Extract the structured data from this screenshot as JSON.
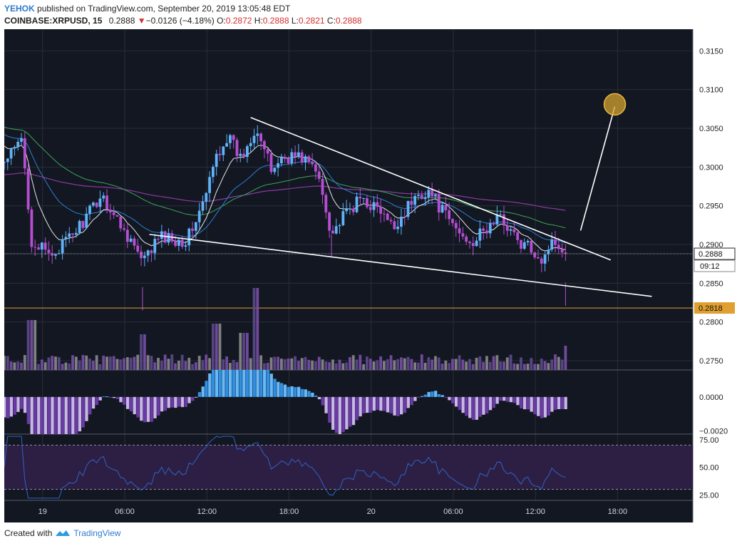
{
  "header": {
    "author": "YEHOK",
    "published_text": "published on TradingView.com, September 20, 2019 13:05:48 EDT",
    "symbol": "COINBASE:XRPUSD, 15",
    "last_price": "0.2888",
    "change_arrow": "▼",
    "change": "−0.0126 (−4.18%)",
    "o_label": "O:",
    "o_value": "0.2872",
    "h_label": "H:",
    "h_value": "0.2888",
    "l_label": "L:",
    "l_value": "0.2821",
    "c_label": "C:",
    "c_value": "0.2888"
  },
  "footer": {
    "created_with": "Created with",
    "brand": "TradingView"
  },
  "colors": {
    "background": "#131722",
    "grid": "#2a2e39",
    "candle_up": "#5fb3f9",
    "candle_down": "#b54fd1",
    "price_line": "#ffffff",
    "support_line": "#e0a030",
    "ema_fast": "#e8e8e8",
    "ema_mid": "#2b7fd4",
    "ema_slow": "#3ea35a",
    "ema_long": "#8b3aa0",
    "rsi_line": "#2f62c7",
    "rsi_band": "#2d1f44",
    "target_circle": "#d4a330"
  },
  "chart_data": {
    "type": "candlestick",
    "y_axis_price": {
      "ylim": [
        0.2738,
        0.3178
      ],
      "ticks": [
        "0.3150",
        "0.3100",
        "0.3050",
        "0.3000",
        "0.2950",
        "0.2900",
        "0.2850",
        "0.2800",
        "0.2750"
      ]
    },
    "price_labels": {
      "last_price": "0.2888",
      "countdown": "09:12",
      "support": "0.2818"
    },
    "support_level": 0.2818,
    "last_close": 0.2888,
    "x_axis": {
      "ticks": [
        "19",
        "06:00",
        "12:00",
        "18:00",
        "20",
        "06:00",
        "12:00",
        "18:00"
      ],
      "tick_hours": [
        0,
        6,
        12,
        18,
        24,
        30,
        36,
        42
      ]
    },
    "x_span_hours": [
      -2.8,
      47.5
    ],
    "candles_key_points": [
      {
        "t": -2.8,
        "p": 0.3005
      },
      {
        "t": -1.5,
        "p": 0.3035
      },
      {
        "t": -0.8,
        "p": 0.2905
      },
      {
        "t": 0.5,
        "p": 0.2885
      },
      {
        "t": 1.8,
        "p": 0.2905
      },
      {
        "t": 3.2,
        "p": 0.2935
      },
      {
        "t": 4.3,
        "p": 0.2965
      },
      {
        "t": 5.3,
        "p": 0.2935
      },
      {
        "t": 6.5,
        "p": 0.2905
      },
      {
        "t": 7.3,
        "p": 0.2875
      },
      {
        "t": 8.5,
        "p": 0.291
      },
      {
        "t": 10.5,
        "p": 0.2905
      },
      {
        "t": 11.8,
        "p": 0.2955
      },
      {
        "t": 12.7,
        "p": 0.3015
      },
      {
        "t": 13.5,
        "p": 0.304
      },
      {
        "t": 14.5,
        "p": 0.301
      },
      {
        "t": 15.6,
        "p": 0.3055
      },
      {
        "t": 16.7,
        "p": 0.2995
      },
      {
        "t": 17.3,
        "p": 0.301
      },
      {
        "t": 18.3,
        "p": 0.3015
      },
      {
        "t": 19.3,
        "p": 0.301
      },
      {
        "t": 20.2,
        "p": 0.2985
      },
      {
        "t": 21.1,
        "p": 0.2915
      },
      {
        "t": 22.2,
        "p": 0.294
      },
      {
        "t": 23.3,
        "p": 0.296
      },
      {
        "t": 24.5,
        "p": 0.2945
      },
      {
        "t": 25.6,
        "p": 0.292
      },
      {
        "t": 26.5,
        "p": 0.2945
      },
      {
        "t": 27.5,
        "p": 0.2965
      },
      {
        "t": 28.2,
        "p": 0.297
      },
      {
        "t": 29.5,
        "p": 0.2935
      },
      {
        "t": 30.7,
        "p": 0.291
      },
      {
        "t": 31.5,
        "p": 0.2905
      },
      {
        "t": 32.5,
        "p": 0.292
      },
      {
        "t": 33.2,
        "p": 0.2935
      },
      {
        "t": 34.0,
        "p": 0.2925
      },
      {
        "t": 34.8,
        "p": 0.29
      },
      {
        "t": 35.8,
        "p": 0.2895
      },
      {
        "t": 36.5,
        "p": 0.288
      },
      {
        "t": 37.0,
        "p": 0.29
      },
      {
        "t": 37.6,
        "p": 0.2905
      },
      {
        "t": 38.2,
        "p": 0.2888
      }
    ],
    "annotations": {
      "upper_trendline": [
        {
          "t": 15.2,
          "p": 0.3064
        },
        {
          "t": 41.5,
          "p": 0.288
        }
      ],
      "lower_trendline": [
        {
          "t": 7.8,
          "p": 0.2913
        },
        {
          "t": 44.5,
          "p": 0.2833
        }
      ],
      "projection_line": [
        {
          "t": 39.3,
          "p": 0.2918
        },
        {
          "t": 41.8,
          "p": 0.3078
        }
      ],
      "target": {
        "t": 41.8,
        "p": 0.3081
      }
    },
    "volume_panel": {
      "colors": [
        "#8b8b8b",
        "#5d4a8c",
        "#7b4fa8"
      ]
    },
    "macd_panel": {
      "ylim": [
        -0.0022,
        0.0016
      ],
      "ticks": [
        "0.0000",
        "−0.0020"
      ]
    },
    "rsi_panel": {
      "ylim": [
        20,
        80
      ],
      "ticks": [
        "75.00",
        "50.00",
        "25.00"
      ],
      "band": [
        30,
        70
      ]
    }
  }
}
